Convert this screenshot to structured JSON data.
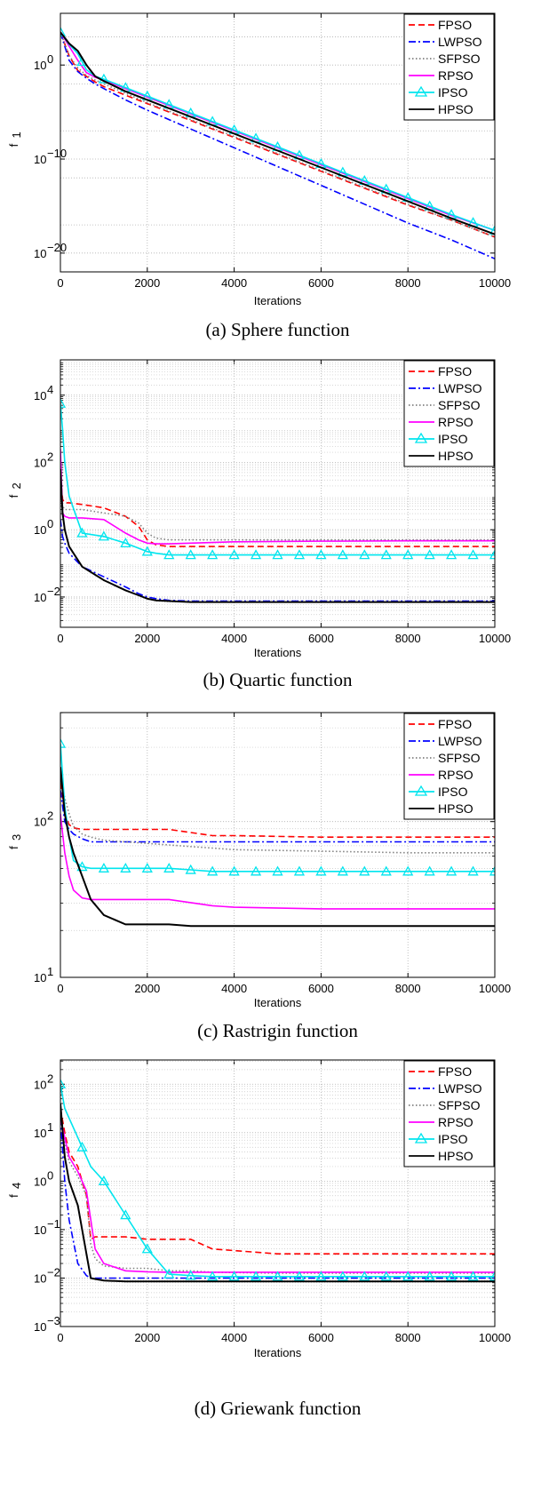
{
  "legend_entries": [
    "FPSO",
    "LWPSO",
    "SFPSO",
    "RPSO",
    "IPSO",
    "HPSO"
  ],
  "series_styles": {
    "FPSO": {
      "color": "#ff0000",
      "dash": "7,4",
      "marker": "none"
    },
    "LWPSO": {
      "color": "#0000ff",
      "dash": "8,3,2,3",
      "marker": "none"
    },
    "SFPSO": {
      "color": "#808080",
      "dash": "1.5,2.5",
      "marker": "none"
    },
    "RPSO": {
      "color": "#ff00ff",
      "dash": "",
      "marker": "none"
    },
    "IPSO": {
      "color": "#00e5ee",
      "dash": "",
      "marker": "triangle"
    },
    "HPSO": {
      "color": "#000000",
      "dash": "",
      "marker": "none"
    }
  },
  "chart_data": [
    {
      "type": "line",
      "yscale": "log",
      "caption": "(a) Sphere function",
      "xlabel": "Iterations",
      "ylabel_main": "f",
      "ylabel_sub": "1",
      "xlim": [
        0,
        10000
      ],
      "ylim_exp": [
        -22,
        5.5
      ],
      "xticks": [
        "0",
        "2000",
        "4000",
        "6000",
        "8000",
        "10000"
      ],
      "xtick_values": [
        0,
        2000,
        4000,
        6000,
        8000,
        10000
      ],
      "yticks": [
        {
          "base": "10",
          "exp": "0",
          "value_exp": 0
        },
        {
          "base": "10",
          "exp": "−10",
          "value_exp": -10
        },
        {
          "base": "10",
          "exp": "−20",
          "value_exp": -20
        }
      ],
      "grid": true,
      "legend_position": "top-right",
      "x": [
        0,
        200,
        400,
        600,
        800,
        1000,
        1500,
        2000,
        3000,
        4000,
        5000,
        6000,
        7000,
        8000,
        9000,
        10000
      ],
      "series": [
        {
          "name": "FPSO",
          "values_log10": [
            3.5,
            1,
            -0.6,
            -1.2,
            -1.8,
            -2.3,
            -3.2,
            -4.1,
            -5.9,
            -7.7,
            -9.5,
            -11.3,
            -13.1,
            -14.9,
            -16.5,
            -18.3
          ]
        },
        {
          "name": "LWPSO",
          "values_log10": [
            3.5,
            0.5,
            -0.7,
            -1.4,
            -2,
            -2.5,
            -3.7,
            -4.8,
            -6.8,
            -8.8,
            -10.8,
            -12.8,
            -14.8,
            -16.8,
            -18.6,
            -20.6
          ]
        },
        {
          "name": "SFPSO",
          "values_log10": [
            3.5,
            1,
            -0.3,
            -1.1,
            -1.6,
            -2,
            -3,
            -4,
            -5.8,
            -7.6,
            -9.4,
            -11.2,
            -13,
            -14.8,
            -16.5,
            -18.3
          ]
        },
        {
          "name": "RPSO",
          "values_log10": [
            3.5,
            2,
            0.5,
            -0.8,
            -1.3,
            -1.6,
            -2.5,
            -3.4,
            -5.2,
            -7,
            -8.8,
            -10.6,
            -12.4,
            -14.2,
            -16,
            -17.6
          ]
        },
        {
          "name": "IPSO",
          "values_log10": [
            3.5,
            2.2,
            1.2,
            -0.5,
            -1.2,
            -1.5,
            -2.4,
            -3.3,
            -5.1,
            -6.9,
            -8.7,
            -10.5,
            -12.3,
            -14.1,
            -15.9,
            -17.6
          ]
        },
        {
          "name": "HPSO",
          "values_log10": [
            3.5,
            2.3,
            1.5,
            0,
            -1.2,
            -1.7,
            -2.8,
            -3.7,
            -5.5,
            -7.3,
            -9.1,
            -10.9,
            -12.7,
            -14.5,
            -16.3,
            -18.0
          ]
        }
      ]
    },
    {
      "type": "line",
      "yscale": "log",
      "caption": "(b) Quartic function",
      "xlabel": "Iterations",
      "ylabel_main": "f",
      "ylabel_sub": "2",
      "xlim": [
        0,
        10000
      ],
      "ylim_exp": [
        -2.9,
        5.05
      ],
      "xticks": [
        "0",
        "2000",
        "4000",
        "6000",
        "8000",
        "10000"
      ],
      "xtick_values": [
        0,
        2000,
        4000,
        6000,
        8000,
        10000
      ],
      "yticks": [
        {
          "base": "10",
          "exp": "−2",
          "value_exp": -2
        },
        {
          "base": "10",
          "exp": "0",
          "value_exp": 0
        },
        {
          "base": "10",
          "exp": "2",
          "value_exp": 2
        },
        {
          "base": "10",
          "exp": "4",
          "value_exp": 4
        }
      ],
      "grid": true,
      "legend_position": "top-right",
      "x": [
        0,
        50,
        100,
        200,
        500,
        1000,
        1500,
        1800,
        2000,
        2200,
        2500,
        3000,
        4000,
        6000,
        8000,
        10000
      ],
      "series": [
        {
          "name": "FPSO",
          "values_log10": [
            1.6,
            0.9,
            0.8,
            0.8,
            0.75,
            0.65,
            0.4,
            0.1,
            -0.3,
            -0.45,
            -0.5,
            -0.5,
            -0.5,
            -0.5,
            -0.5,
            -0.5
          ]
        },
        {
          "name": "LWPSO",
          "values_log10": [
            0.3,
            -0.2,
            -0.4,
            -0.7,
            -1.1,
            -1.4,
            -1.7,
            -1.9,
            -2,
            -2.05,
            -2.1,
            -2.12,
            -2.12,
            -2.12,
            -2.12,
            -2.12
          ]
        },
        {
          "name": "SFPSO",
          "values_log10": [
            1.4,
            0.7,
            0.6,
            0.6,
            0.6,
            0.5,
            0.4,
            0.2,
            -0.1,
            -0.25,
            -0.3,
            -0.3,
            -0.3,
            -0.3,
            -0.3,
            -0.3
          ]
        },
        {
          "name": "RPSO",
          "values_log10": [
            2.4,
            0.5,
            0.4,
            0.35,
            0.35,
            0.3,
            -0.1,
            -0.3,
            -0.4,
            -0.42,
            -0.42,
            -0.4,
            -0.36,
            -0.34,
            -0.33,
            -0.33
          ]
        },
        {
          "name": "IPSO",
          "values_log10": [
            3.75,
            3,
            2,
            1,
            -0.1,
            -0.2,
            -0.4,
            -0.55,
            -0.65,
            -0.7,
            -0.75,
            -0.75,
            -0.75,
            -0.75,
            -0.75,
            -0.75
          ]
        },
        {
          "name": "HPSO",
          "values_log10": [
            1.8,
            0.5,
            0,
            -0.5,
            -1.1,
            -1.5,
            -1.8,
            -1.95,
            -2.05,
            -2.1,
            -2.12,
            -2.15,
            -2.15,
            -2.15,
            -2.15,
            -2.15
          ]
        }
      ]
    },
    {
      "type": "line",
      "yscale": "log",
      "caption": "(c) Rastrigin function",
      "xlabel": "Iterations",
      "ylabel_main": "f",
      "ylabel_sub": "3",
      "xlim": [
        0,
        10000
      ],
      "ylim_exp": [
        1,
        2.7
      ],
      "xticks": [
        "0",
        "2000",
        "4000",
        "6000",
        "8000",
        "10000"
      ],
      "xtick_values": [
        0,
        2000,
        4000,
        6000,
        8000,
        10000
      ],
      "yticks": [
        {
          "base": "10",
          "exp": "1",
          "value_exp": 1
        },
        {
          "base": "10",
          "exp": "2",
          "value_exp": 2
        }
      ],
      "grid": true,
      "legend_position": "top-right",
      "x": [
        0,
        100,
        200,
        300,
        500,
        700,
        1000,
        1500,
        2000,
        2500,
        3000,
        3500,
        4000,
        6000,
        8000,
        10000
      ],
      "series": [
        {
          "name": "FPSO",
          "values_log10": [
            2.25,
            2.05,
            1.98,
            1.96,
            1.95,
            1.95,
            1.95,
            1.95,
            1.95,
            1.95,
            1.93,
            1.91,
            1.91,
            1.9,
            1.9,
            1.9
          ]
        },
        {
          "name": "LWPSO",
          "values_log10": [
            2.2,
            2,
            1.95,
            1.92,
            1.89,
            1.87,
            1.87,
            1.87,
            1.87,
            1.87,
            1.87,
            1.87,
            1.87,
            1.87,
            1.87,
            1.87
          ]
        },
        {
          "name": "SFPSO",
          "values_log10": [
            2.3,
            2.15,
            2.05,
            1.97,
            1.92,
            1.9,
            1.88,
            1.87,
            1.86,
            1.85,
            1.84,
            1.83,
            1.82,
            1.81,
            1.8,
            1.8
          ]
        },
        {
          "name": "RPSO",
          "values_log10": [
            2.05,
            1.8,
            1.65,
            1.56,
            1.51,
            1.5,
            1.5,
            1.5,
            1.5,
            1.5,
            1.48,
            1.46,
            1.45,
            1.44,
            1.44,
            1.44
          ]
        },
        {
          "name": "IPSO",
          "values_log10": [
            2.5,
            2.1,
            1.9,
            1.75,
            1.71,
            1.7,
            1.7,
            1.7,
            1.7,
            1.7,
            1.69,
            1.68,
            1.68,
            1.68,
            1.68,
            1.68
          ]
        },
        {
          "name": "HPSO",
          "values_log10": [
            2.35,
            2.05,
            1.9,
            1.8,
            1.65,
            1.5,
            1.4,
            1.34,
            1.34,
            1.34,
            1.33,
            1.33,
            1.33,
            1.33,
            1.33,
            1.33
          ]
        }
      ]
    },
    {
      "type": "line",
      "yscale": "log",
      "caption": "(d) Griewank function",
      "xlabel": "Iterations",
      "ylabel_main": "f",
      "ylabel_sub": "4",
      "xlim": [
        0,
        10000
      ],
      "ylim_exp": [
        -3,
        2.5
      ],
      "xticks": [
        "0",
        "2000",
        "4000",
        "6000",
        "8000",
        "10000"
      ],
      "xtick_values": [
        0,
        2000,
        4000,
        6000,
        8000,
        10000
      ],
      "yticks": [
        {
          "base": "10",
          "exp": "−3",
          "value_exp": -3
        },
        {
          "base": "10",
          "exp": "−2",
          "value_exp": -2
        },
        {
          "base": "10",
          "exp": "−1",
          "value_exp": -1
        },
        {
          "base": "10",
          "exp": "0",
          "value_exp": 0
        },
        {
          "base": "10",
          "exp": "1",
          "value_exp": 1
        },
        {
          "base": "10",
          "exp": "2",
          "value_exp": 2
        }
      ],
      "grid": true,
      "legend_position": "top-right",
      "x": [
        0,
        100,
        200,
        400,
        600,
        700,
        800,
        1000,
        1500,
        2000,
        2500,
        3000,
        3500,
        5000,
        6000,
        10000
      ],
      "series": [
        {
          "name": "FPSO",
          "values_log10": [
            1.5,
            1,
            0.6,
            0.3,
            -0.3,
            -1.2,
            -1.15,
            -1.15,
            -1.15,
            -1.2,
            -1.2,
            -1.2,
            -1.4,
            -1.5,
            -1.5,
            -1.5
          ]
        },
        {
          "name": "LWPSO",
          "values_log10": [
            1.3,
            0,
            -0.8,
            -1.7,
            -1.95,
            -2,
            -2,
            -2,
            -2,
            -2,
            -2,
            -2,
            -2,
            -2,
            -2,
            -2
          ]
        },
        {
          "name": "SFPSO",
          "values_log10": [
            1.4,
            0.8,
            0.4,
            0.1,
            -0.3,
            -1.3,
            -1.6,
            -1.75,
            -1.8,
            -1.8,
            -1.85,
            -1.85,
            -1.88,
            -1.9,
            -1.9,
            -1.9
          ]
        },
        {
          "name": "RPSO",
          "values_log10": [
            1.3,
            0.9,
            0.5,
            0.2,
            -0.2,
            -0.8,
            -1.4,
            -1.7,
            -1.85,
            -1.87,
            -1.88,
            -1.88,
            -1.88,
            -1.88,
            -1.88,
            -1.88
          ]
        },
        {
          "name": "IPSO",
          "values_log10": [
            2,
            1.5,
            1.3,
            0.9,
            0.5,
            0.3,
            0.2,
            0,
            -0.7,
            -1.4,
            -1.92,
            -1.95,
            -1.97,
            -1.97,
            -1.97,
            -1.97
          ]
        },
        {
          "name": "HPSO",
          "values_log10": [
            1.6,
            0.5,
            0,
            -0.5,
            -1.5,
            -2,
            -2.02,
            -2.05,
            -2.07,
            -2.07,
            -2.07,
            -2.07,
            -2.07,
            -2.07,
            -2.07,
            -2.07
          ]
        }
      ]
    }
  ]
}
